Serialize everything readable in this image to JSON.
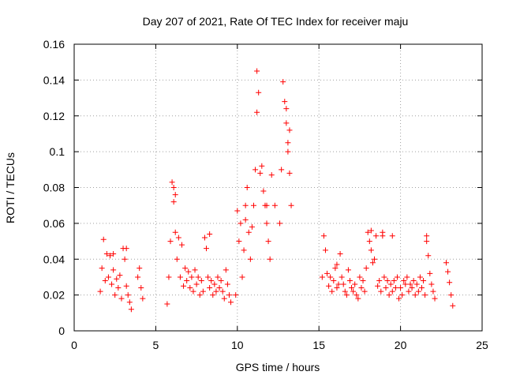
{
  "chart_data": {
    "type": "scatter",
    "title": "Day 207 of 2021, Rate Of TEC Index for receiver maju",
    "xlabel": "GPS time / hours",
    "ylabel": "ROTI / TECUs",
    "xlim": [
      0,
      25
    ],
    "ylim": [
      0,
      0.16
    ],
    "xticks": [
      0,
      5,
      10,
      15,
      20,
      25
    ],
    "xtick_labels": [
      "0",
      "5",
      "10",
      "15",
      "20",
      "25"
    ],
    "yticks": [
      0,
      0.02,
      0.04,
      0.06,
      0.08,
      0.1,
      0.12,
      0.14,
      0.16
    ],
    "ytick_labels": [
      "0",
      "0.02",
      "0.04",
      "0.06",
      "0.08",
      "0.1",
      "0.12",
      "0.14",
      "0.16"
    ],
    "grid": true,
    "marker": "plus",
    "color": "#ff0000",
    "series": [
      {
        "name": "ROTI",
        "x": [
          1.6,
          1.7,
          1.8,
          1.9,
          2.0,
          2.1,
          2.2,
          2.3,
          2.4,
          2.5,
          2.6,
          2.7,
          2.8,
          2.9,
          3.0,
          3.1,
          3.2,
          3.3,
          3.4,
          3.5,
          3.9,
          4.0,
          4.1,
          4.2,
          5.7,
          5.8,
          5.9,
          6.0,
          6.1,
          6.2,
          6.3,
          6.4,
          6.5,
          6.6,
          6.7,
          6.8,
          6.9,
          7.0,
          7.1,
          7.2,
          7.3,
          7.4,
          7.5,
          7.6,
          7.7,
          7.8,
          7.9,
          8.0,
          8.1,
          8.2,
          8.3,
          8.4,
          8.5,
          8.6,
          8.7,
          8.8,
          8.9,
          9.0,
          9.1,
          9.2,
          9.3,
          9.4,
          9.5,
          9.6,
          9.9,
          10.0,
          10.1,
          10.2,
          10.3,
          10.4,
          10.5,
          10.6,
          10.7,
          10.8,
          10.9,
          11.0,
          11.1,
          11.2,
          11.3,
          11.4,
          11.5,
          11.6,
          11.7,
          11.8,
          11.9,
          12.0,
          12.6,
          12.7,
          12.8,
          12.9,
          13.0,
          13.1,
          13.2,
          13.3,
          15.2,
          15.3,
          15.4,
          15.5,
          15.6,
          15.7,
          15.8,
          15.9,
          16.0,
          16.1,
          16.2,
          16.3,
          16.4,
          16.5,
          16.6,
          16.7,
          16.8,
          16.9,
          17.0,
          17.1,
          17.2,
          17.3,
          17.4,
          17.5,
          17.6,
          17.7,
          17.8,
          17.9,
          18.0,
          18.1,
          18.2,
          18.3,
          18.4,
          18.5,
          18.6,
          18.7,
          18.8,
          18.9,
          19.0,
          19.1,
          19.2,
          19.3,
          19.4,
          19.5,
          19.6,
          19.7,
          19.8,
          19.9,
          20.0,
          20.1,
          20.2,
          20.3,
          20.4,
          20.5,
          20.6,
          20.7,
          20.8,
          20.9,
          21.0,
          21.1,
          21.2,
          21.3,
          21.4,
          21.5,
          21.6,
          21.7,
          21.8,
          21.9,
          22.0,
          22.1,
          22.8,
          22.9,
          23.0,
          23.1,
          23.2,
          2.4,
          3.2,
          6.1,
          6.2,
          8.3,
          10.5,
          11.2,
          11.8,
          12.1,
          12.3,
          13.0,
          13.1,
          13.2,
          16.1,
          18.2,
          18.9,
          19.5,
          21.6
        ],
        "y": [
          0.022,
          0.035,
          0.051,
          0.028,
          0.043,
          0.03,
          0.042,
          0.026,
          0.034,
          0.02,
          0.029,
          0.024,
          0.031,
          0.018,
          0.046,
          0.04,
          0.025,
          0.02,
          0.016,
          0.012,
          0.03,
          0.035,
          0.024,
          0.018,
          0.015,
          0.03,
          0.05,
          0.083,
          0.072,
          0.055,
          0.04,
          0.052,
          0.03,
          0.048,
          0.025,
          0.035,
          0.028,
          0.033,
          0.024,
          0.03,
          0.022,
          0.034,
          0.026,
          0.03,
          0.02,
          0.028,
          0.022,
          0.052,
          0.046,
          0.03,
          0.024,
          0.028,
          0.02,
          0.026,
          0.022,
          0.03,
          0.024,
          0.028,
          0.022,
          0.018,
          0.034,
          0.026,
          0.02,
          0.016,
          0.02,
          0.067,
          0.05,
          0.06,
          0.03,
          0.045,
          0.062,
          0.08,
          0.055,
          0.04,
          0.058,
          0.07,
          0.09,
          0.145,
          0.133,
          0.088,
          0.092,
          0.078,
          0.07,
          0.06,
          0.05,
          0.04,
          0.06,
          0.09,
          0.139,
          0.128,
          0.116,
          0.1,
          0.088,
          0.07,
          0.03,
          0.053,
          0.045,
          0.032,
          0.025,
          0.03,
          0.022,
          0.028,
          0.035,
          0.024,
          0.026,
          0.043,
          0.03,
          0.026,
          0.022,
          0.02,
          0.034,
          0.028,
          0.024,
          0.022,
          0.026,
          0.02,
          0.018,
          0.03,
          0.024,
          0.028,
          0.022,
          0.035,
          0.055,
          0.05,
          0.045,
          0.038,
          0.04,
          0.053,
          0.025,
          0.028,
          0.022,
          0.053,
          0.03,
          0.024,
          0.028,
          0.02,
          0.026,
          0.022,
          0.028,
          0.024,
          0.03,
          0.018,
          0.024,
          0.02,
          0.028,
          0.026,
          0.03,
          0.022,
          0.026,
          0.024,
          0.028,
          0.02,
          0.026,
          0.022,
          0.03,
          0.024,
          0.028,
          0.02,
          0.053,
          0.042,
          0.032,
          0.026,
          0.022,
          0.018,
          0.038,
          0.033,
          0.027,
          0.02,
          0.014,
          0.043,
          0.046,
          0.08,
          0.076,
          0.054,
          0.07,
          0.122,
          0.07,
          0.087,
          0.07,
          0.124,
          0.105,
          0.112,
          0.037,
          0.056,
          0.055,
          0.053,
          0.05
        ]
      }
    ]
  }
}
